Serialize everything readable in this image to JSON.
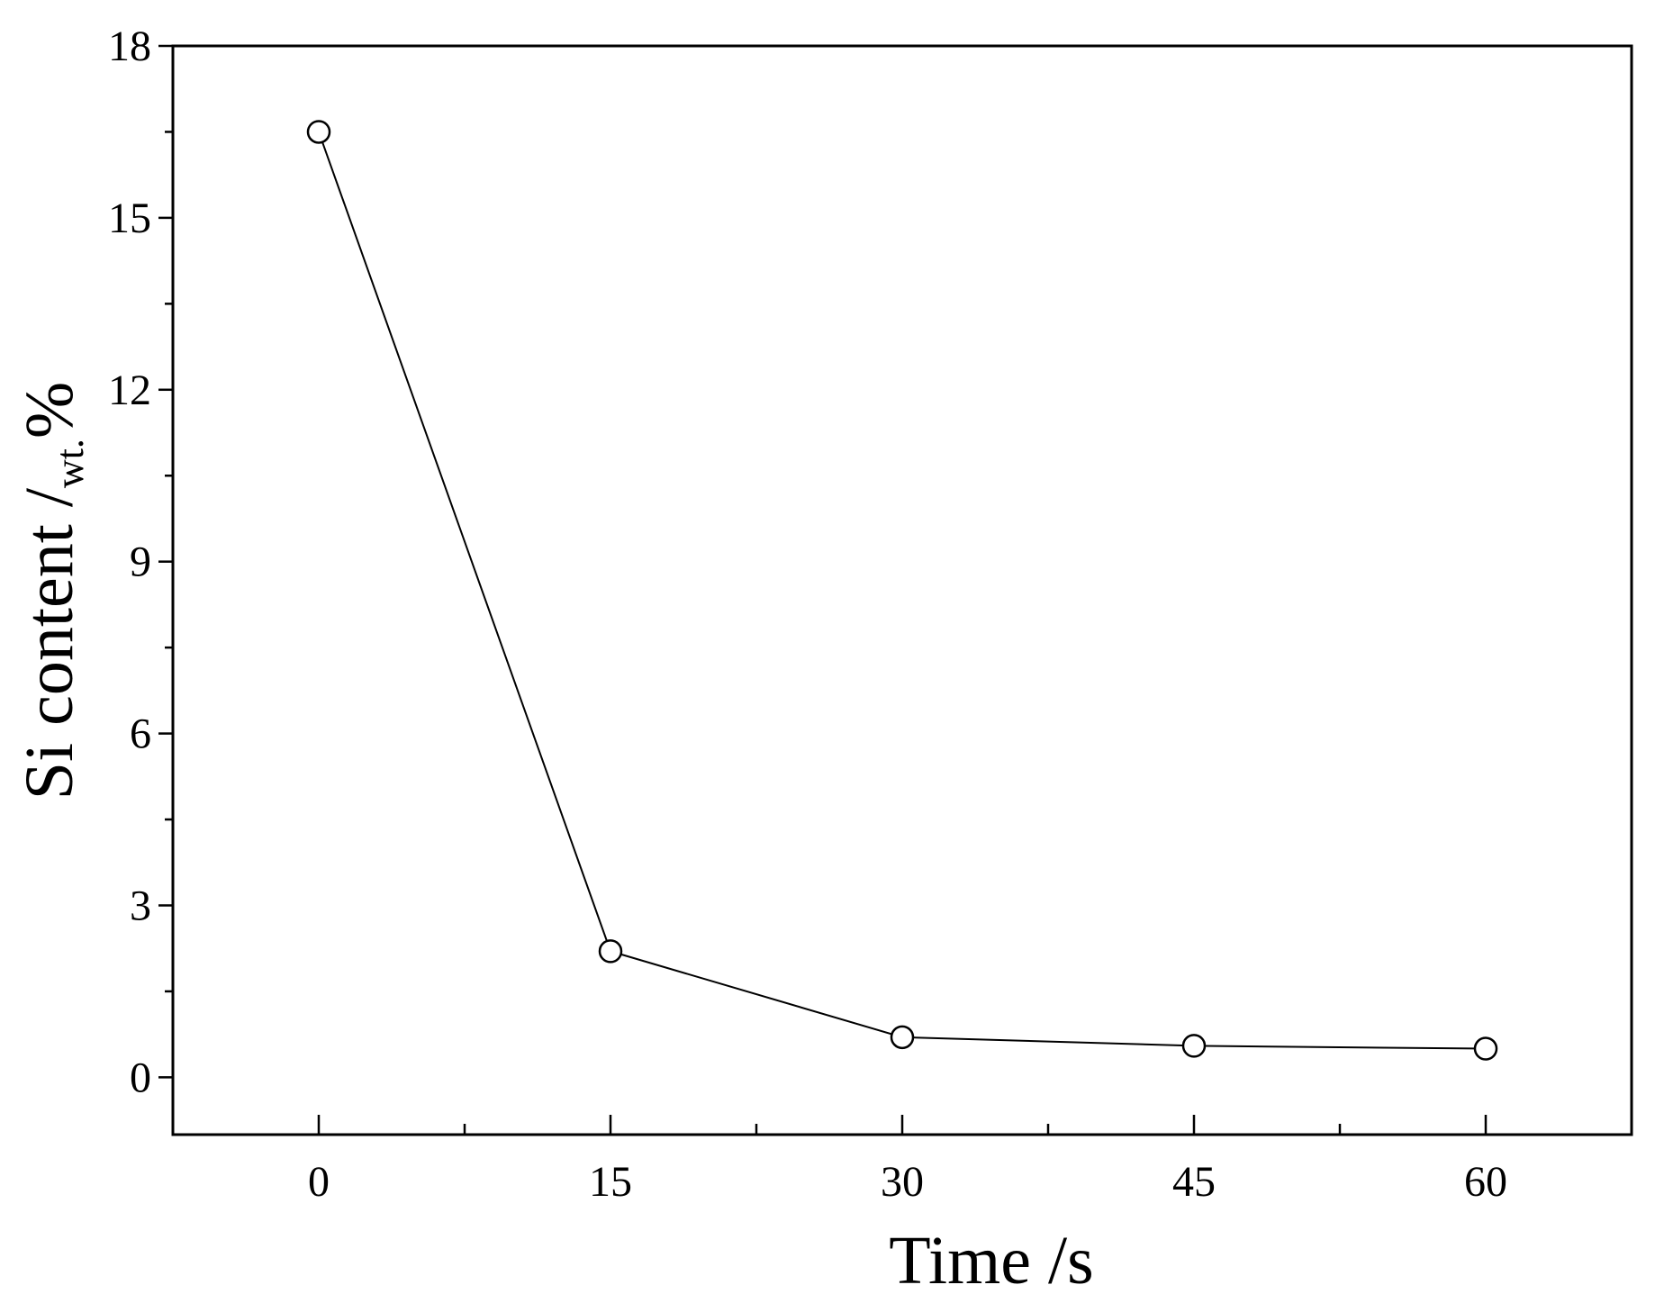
{
  "chart_data": {
    "type": "line",
    "x_label": "Time /s",
    "y_label": "Si content /",
    "y_label_sub": "wt.",
    "y_label_unit": "%",
    "x": [
      0,
      15,
      30,
      45,
      60
    ],
    "series": [
      {
        "color": "#000000",
        "values": [
          16.5,
          2.2,
          0.7,
          0.55,
          0.5
        ]
      }
    ],
    "xlim": [
      -7.5,
      67.5
    ],
    "ylim": [
      -1,
      18
    ],
    "xticks": [
      0,
      15,
      30,
      45,
      60
    ],
    "yticks": [
      0,
      3,
      6,
      9,
      12,
      15,
      18
    ],
    "xminorticks": [
      7.5,
      22.5,
      37.5,
      52.5
    ],
    "yminorticks": [
      1.5,
      4.5,
      7.5,
      10.5,
      13.5,
      16.5
    ],
    "grid": false
  }
}
